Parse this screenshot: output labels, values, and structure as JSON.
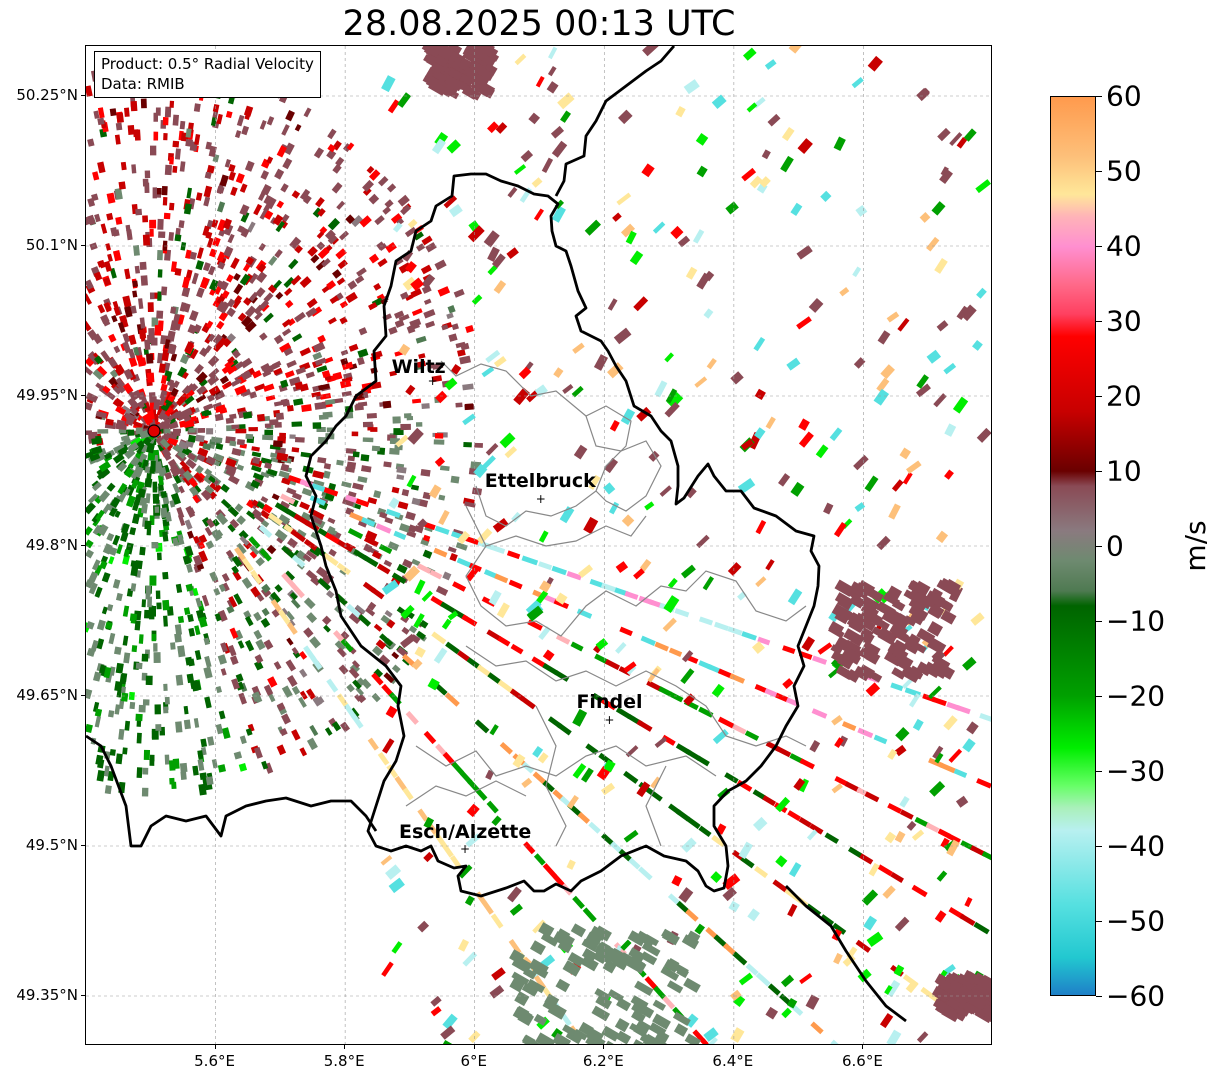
{
  "title": "28.08.2025 00:13 UTC",
  "info": {
    "product": "Product: 0.5° Radial Velocity",
    "data": "Data: RMIB"
  },
  "map": {
    "lon_range": [
      5.4,
      6.8
    ],
    "lat_range": [
      49.3,
      50.3
    ],
    "radar_site": {
      "lon": 5.505,
      "lat": 49.915,
      "color": "#e00000"
    },
    "lat_ticks": [
      {
        "value": 50.25,
        "label": "50.25°N"
      },
      {
        "value": 50.1,
        "label": "50.1°N"
      },
      {
        "value": 49.95,
        "label": "49.95°N"
      },
      {
        "value": 49.8,
        "label": "49.8°N"
      },
      {
        "value": 49.65,
        "label": "49.65°N"
      },
      {
        "value": 49.5,
        "label": "49.5°N"
      },
      {
        "value": 49.35,
        "label": "49.35°N"
      }
    ],
    "lon_ticks": [
      {
        "value": 5.6,
        "label": "5.6°E"
      },
      {
        "value": 5.8,
        "label": "5.8°E"
      },
      {
        "value": 6.0,
        "label": "6°E"
      },
      {
        "value": 6.2,
        "label": "6.2°E"
      },
      {
        "value": 6.4,
        "label": "6.4°E"
      },
      {
        "value": 6.6,
        "label": "6.6°E"
      }
    ],
    "cities": [
      {
        "name": "Wiltz",
        "lon": 5.935,
        "lat": 49.965
      },
      {
        "name": "Ettelbruck",
        "lon": 6.102,
        "lat": 49.847
      },
      {
        "name": "Findel",
        "lon": 6.208,
        "lat": 49.626
      },
      {
        "name": "Esch/Alzette",
        "lon": 5.985,
        "lat": 49.497
      }
    ],
    "grid": true
  },
  "colorbar": {
    "unit": "m/s",
    "min": -60,
    "max": 60,
    "ticks": [
      {
        "value": 60,
        "label": "60"
      },
      {
        "value": 50,
        "label": "50"
      },
      {
        "value": 40,
        "label": "40"
      },
      {
        "value": 30,
        "label": "30"
      },
      {
        "value": 20,
        "label": "20"
      },
      {
        "value": 10,
        "label": "10"
      },
      {
        "value": 0,
        "label": "0"
      },
      {
        "value": -10,
        "label": "−10"
      },
      {
        "value": -20,
        "label": "−20"
      },
      {
        "value": -30,
        "label": "−30"
      },
      {
        "value": -40,
        "label": "−40"
      },
      {
        "value": -50,
        "label": "−50"
      },
      {
        "value": -60,
        "label": "−60"
      }
    ],
    "stops": [
      {
        "v": 60,
        "c": "#ff9a4d"
      },
      {
        "v": 52,
        "c": "#fdc07a"
      },
      {
        "v": 47,
        "c": "#ffe799"
      },
      {
        "v": 44,
        "c": "#ffb3b8"
      },
      {
        "v": 40,
        "c": "#ff8fd0"
      },
      {
        "v": 35,
        "c": "#ff6a8a"
      },
      {
        "v": 31,
        "c": "#ff4060"
      },
      {
        "v": 28,
        "c": "#ff0000"
      },
      {
        "v": 18,
        "c": "#c80000"
      },
      {
        "v": 10,
        "c": "#6a0000"
      },
      {
        "v": 8,
        "c": "#8a4a55"
      },
      {
        "v": 2,
        "c": "#8a7a7f"
      },
      {
        "v": -2,
        "c": "#6e8a70"
      },
      {
        "v": -6,
        "c": "#4f7a52"
      },
      {
        "v": -8,
        "c": "#006400"
      },
      {
        "v": -20,
        "c": "#00a000"
      },
      {
        "v": -27,
        "c": "#00ee00"
      },
      {
        "v": -32,
        "c": "#66ff66"
      },
      {
        "v": -35,
        "c": "#aaf0bb"
      },
      {
        "v": -38,
        "c": "#b8f0f0"
      },
      {
        "v": -48,
        "c": "#55e0e0"
      },
      {
        "v": -55,
        "c": "#22c8d0"
      },
      {
        "v": -60,
        "c": "#1e80c8"
      }
    ]
  }
}
